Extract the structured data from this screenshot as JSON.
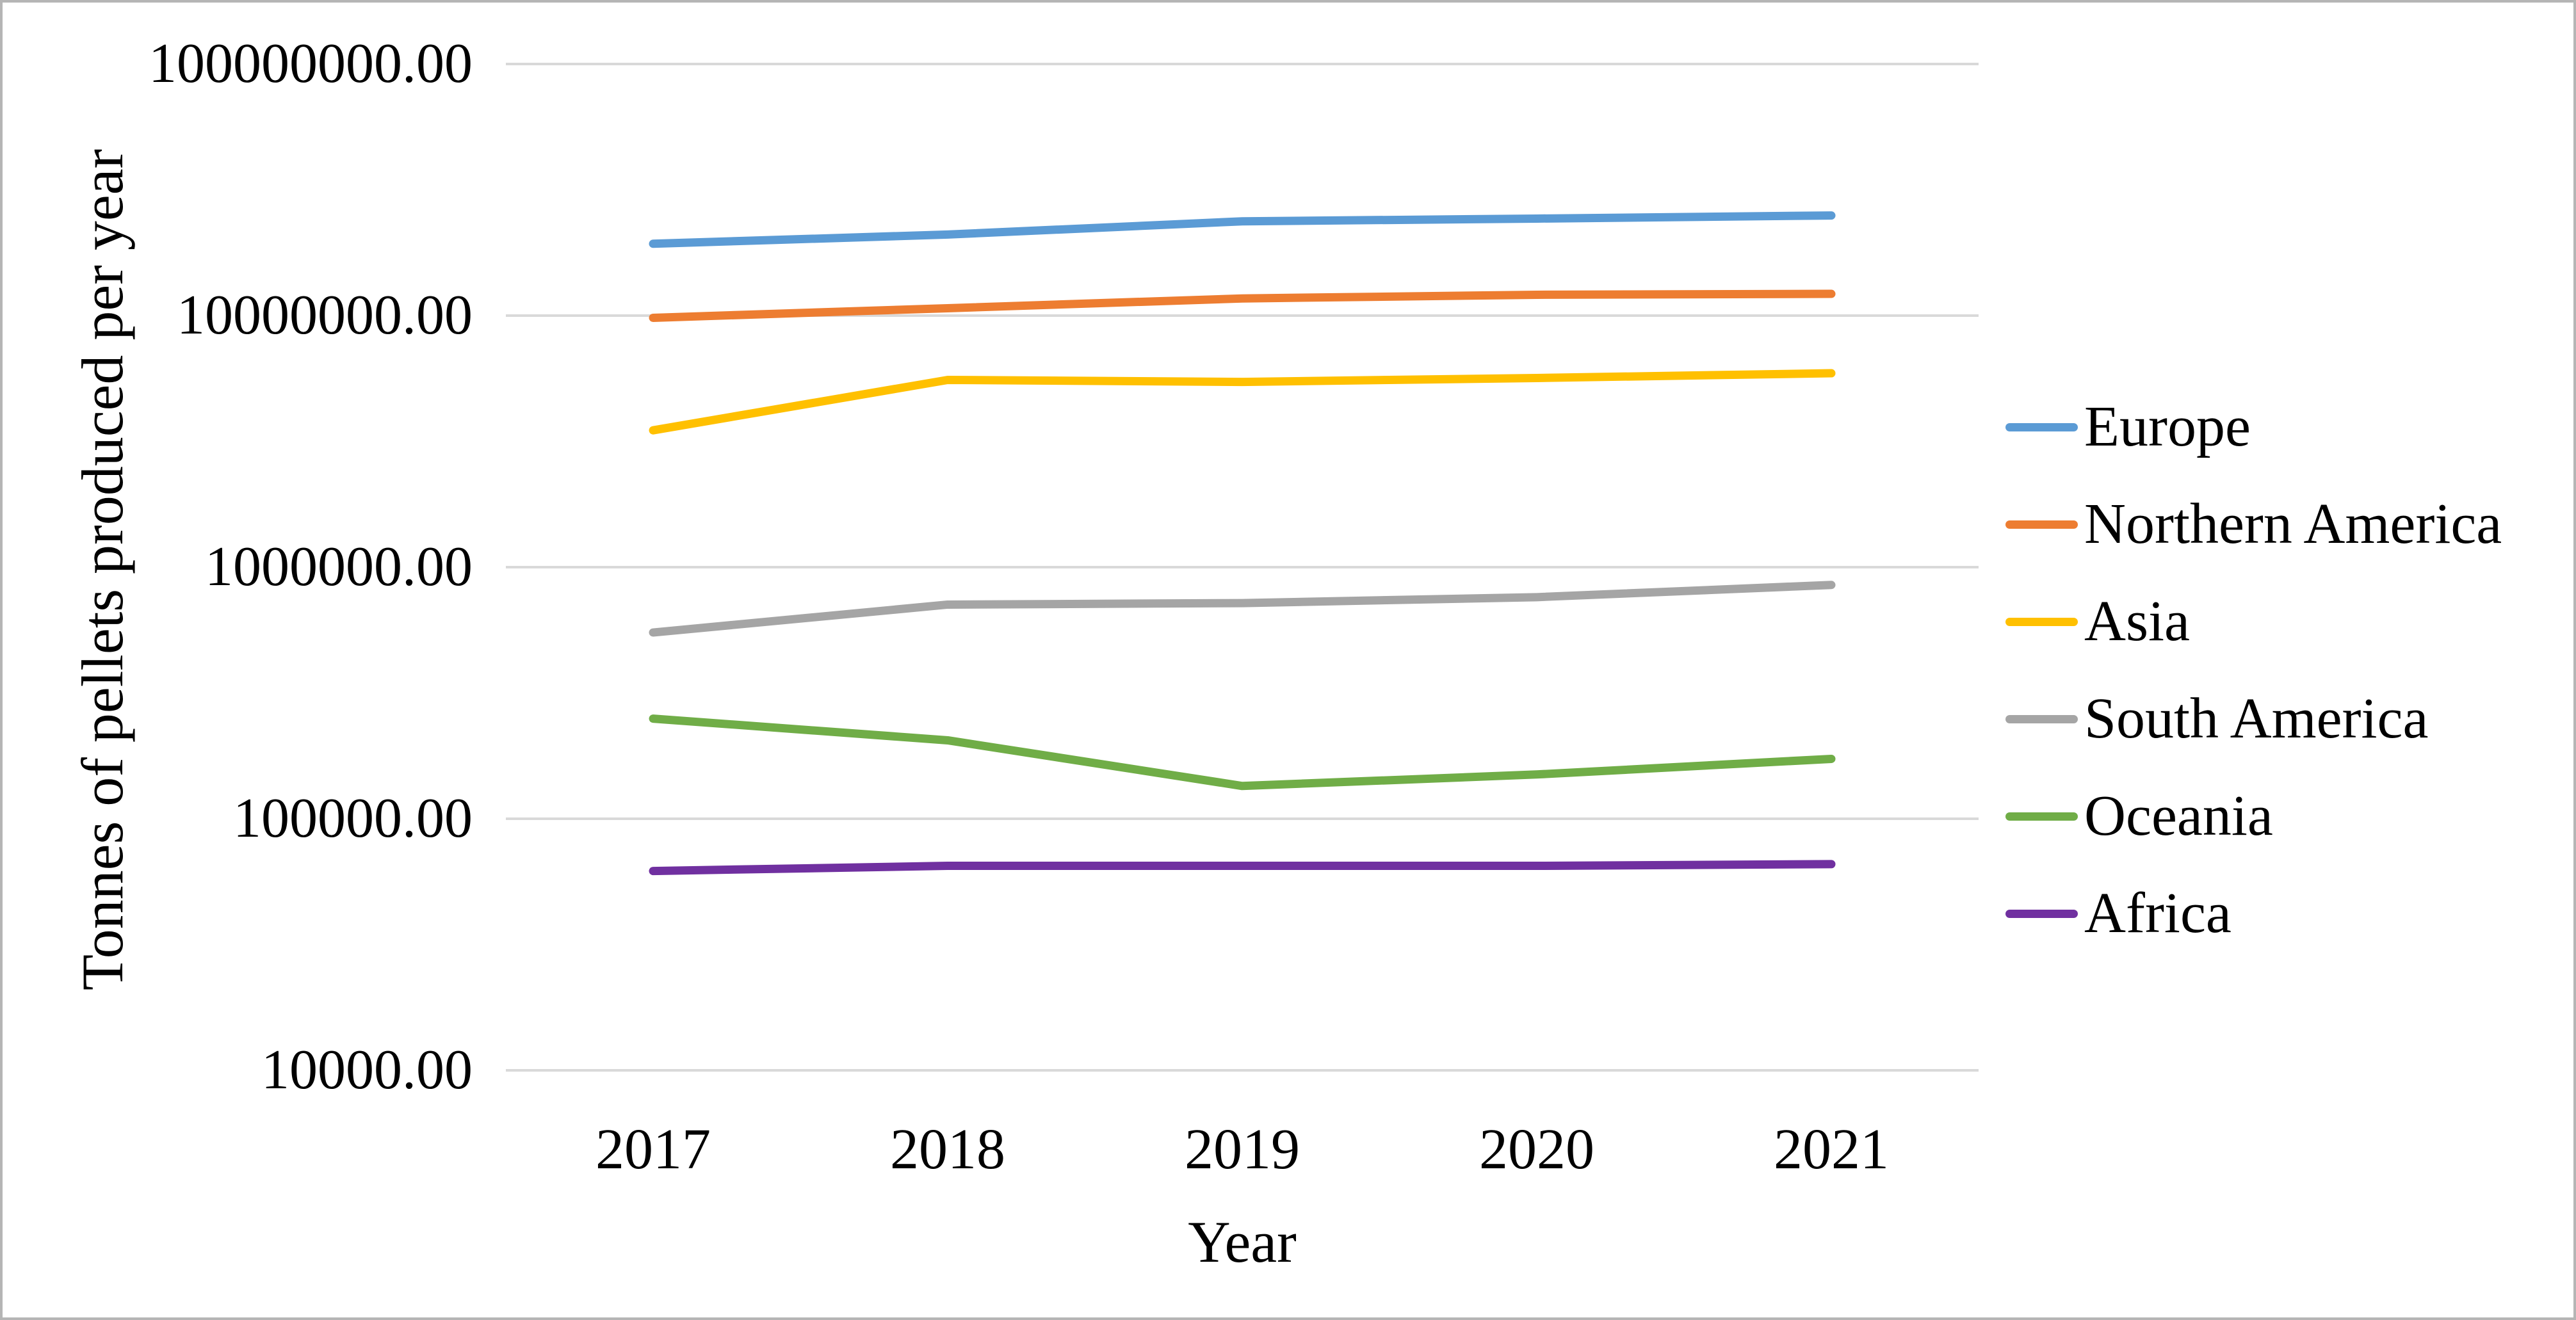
{
  "figure": {
    "background_color": "#ffffff",
    "border_color": "#b5b5b5",
    "text_color": "#000000"
  },
  "chart_data": {
    "type": "line",
    "title": "",
    "xlabel": "Year",
    "ylabel": "Tonnes of pellets produced per year",
    "x_labels": [
      "2017",
      "2018",
      "2019",
      "2020",
      "2021"
    ],
    "y_scale": "log10",
    "ylim": [
      10000,
      100000000
    ],
    "grid": "horizontal",
    "gridline_color": "#d9d9d9",
    "legend_position": "right",
    "y_ticks": [
      {
        "value": 100000000,
        "label": "100000000.00"
      },
      {
        "value": 10000000,
        "label": "10000000.00"
      },
      {
        "value": 1000000,
        "label": "1000000.00"
      },
      {
        "value": 100000,
        "label": "100000.00"
      },
      {
        "value": 10000,
        "label": "10000.00"
      }
    ],
    "series": [
      {
        "name": "Europe",
        "color": "#5b9bd5",
        "values": [
          19300000,
          21000000,
          23700000,
          24300000,
          25000000
        ]
      },
      {
        "name": "Northern America",
        "color": "#ed7d31",
        "values": [
          9800000,
          10700000,
          11700000,
          12100000,
          12200000
        ]
      },
      {
        "name": "Asia",
        "color": "#ffc000",
        "values": [
          3500000,
          5550000,
          5450000,
          5650000,
          5900000
        ]
      },
      {
        "name": "South America",
        "color": "#a5a5a5",
        "values": [
          550000,
          710000,
          720000,
          760000,
          850000
        ]
      },
      {
        "name": "Oceania",
        "color": "#70ad47",
        "values": [
          250000,
          205000,
          135000,
          150000,
          173000
        ]
      },
      {
        "name": "Africa",
        "color": "#7030a0",
        "values": [
          62000,
          65000,
          65000,
          65000,
          66000
        ]
      }
    ]
  }
}
